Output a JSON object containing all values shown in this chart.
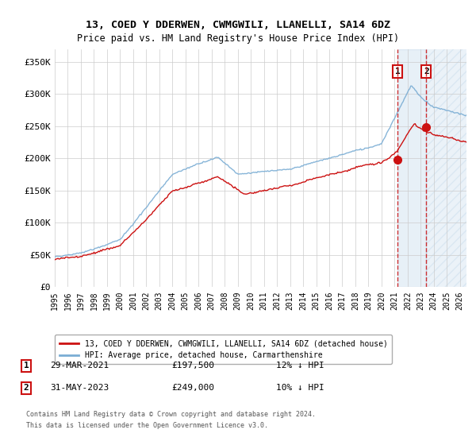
{
  "title": "13, COED Y DDERWEN, CWMGWILI, LLANELLI, SA14 6DZ",
  "subtitle": "Price paid vs. HM Land Registry's House Price Index (HPI)",
  "hpi_color": "#7aadd4",
  "price_color": "#cc1111",
  "dashed_line_color": "#cc1111",
  "marker1_year": 2021.23,
  "marker2_year": 2023.42,
  "marker1_price": 197500,
  "marker2_price": 249000,
  "legend1": "13, COED Y DDERWEN, CWMGWILI, LLANELLI, SA14 6DZ (detached house)",
  "legend2": "HPI: Average price, detached house, Carmarthenshire",
  "table_row1": [
    "1",
    "29-MAR-2021",
    "£197,500",
    "12% ↓ HPI"
  ],
  "table_row2": [
    "2",
    "31-MAY-2023",
    "£249,000",
    "10% ↓ HPI"
  ],
  "footnote1": "Contains HM Land Registry data © Crown copyright and database right 2024.",
  "footnote2": "This data is licensed under the Open Government Licence v3.0.",
  "ylim_max": 370000,
  "background_color": "#ffffff",
  "grid_color": "#cccccc",
  "xlim_start": 1995,
  "xlim_end": 2026.5
}
